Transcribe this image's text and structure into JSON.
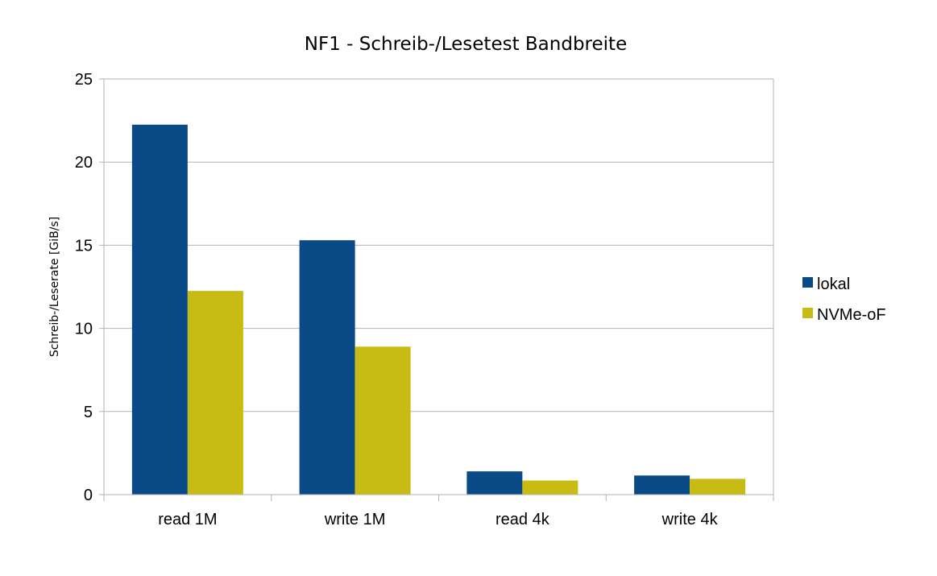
{
  "chart_data": {
    "type": "bar",
    "title": "NF1 - Schreib-/Lesetest Bandbreite",
    "xlabel": "",
    "ylabel": "Schreib-/Leserate [GiB/s]",
    "categories": [
      "read 1M",
      "write 1M",
      "read 4k",
      "write 4k"
    ],
    "series": [
      {
        "name": "lokal",
        "color": "#0a4a86",
        "values": [
          22.25,
          15.3,
          1.4,
          1.15
        ]
      },
      {
        "name": "NVMe-oF",
        "color": "#c8bb14",
        "values": [
          12.25,
          8.9,
          0.85,
          0.95
        ]
      }
    ],
    "ylim": [
      0,
      25
    ],
    "yticks": [
      0,
      5,
      10,
      15,
      20,
      25
    ],
    "grid": true,
    "legend_position": "right"
  }
}
